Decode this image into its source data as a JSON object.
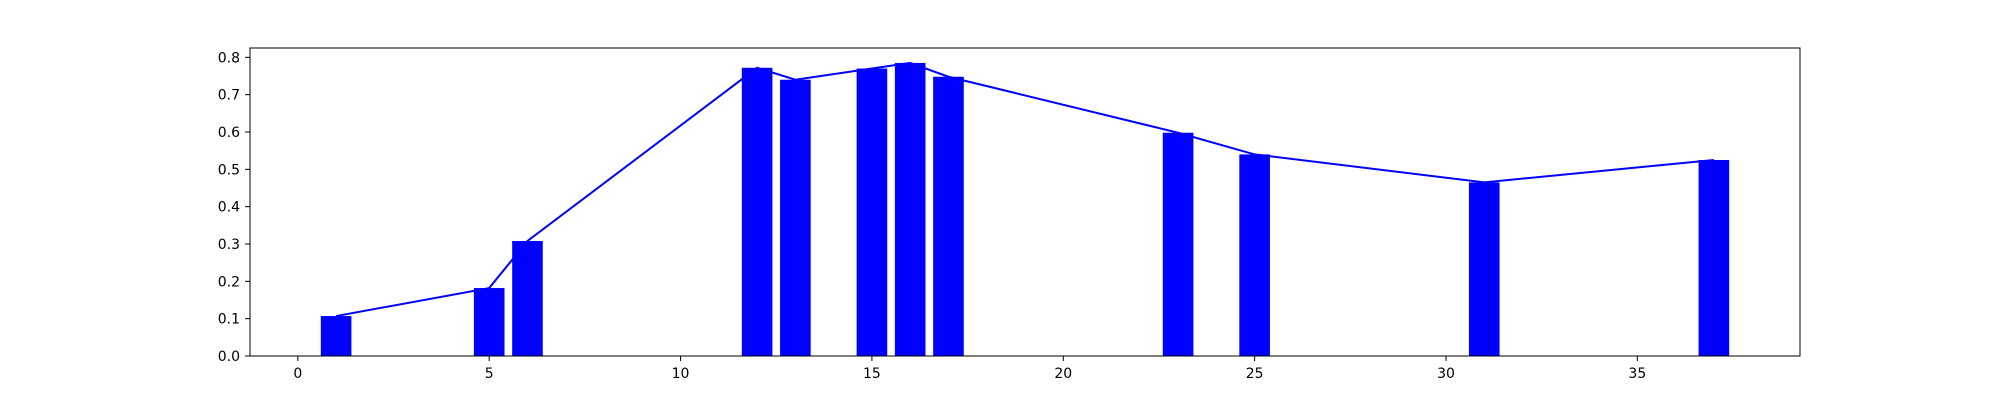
{
  "chart_data": {
    "type": "bar",
    "title": "",
    "xlabel": "",
    "ylabel": "",
    "xlim": [
      -1.25,
      39.25
    ],
    "ylim": [
      0,
      0.825
    ],
    "x_ticks": [
      0,
      5,
      10,
      15,
      20,
      25,
      30,
      35
    ],
    "y_ticks": [
      0.0,
      0.1,
      0.2,
      0.3,
      0.4,
      0.5,
      0.6,
      0.7,
      0.8
    ],
    "x_tick_labels": [
      "0",
      "5",
      "10",
      "15",
      "20",
      "25",
      "30",
      "35"
    ],
    "y_tick_labels": [
      "0.0",
      "0.1",
      "0.2",
      "0.3",
      "0.4",
      "0.5",
      "0.6",
      "0.7",
      "0.8"
    ],
    "grid": false,
    "legend": "none",
    "bar_width": 0.8,
    "colors": {
      "bar": "#0000ff",
      "line": "#0000ff",
      "axes": "#000000"
    },
    "bars": {
      "x": [
        1,
        5,
        6,
        12,
        13,
        15,
        16,
        17,
        23,
        25,
        31,
        37
      ],
      "values": [
        0.107,
        0.182,
        0.308,
        0.772,
        0.74,
        0.77,
        0.785,
        0.748,
        0.598,
        0.54,
        0.465,
        0.525
      ]
    },
    "line": {
      "x": [
        1,
        5,
        6,
        12,
        13,
        15,
        16,
        17,
        23,
        25,
        31,
        37
      ],
      "values": [
        0.107,
        0.182,
        0.308,
        0.772,
        0.74,
        0.77,
        0.785,
        0.748,
        0.598,
        0.54,
        0.465,
        0.525
      ]
    }
  }
}
